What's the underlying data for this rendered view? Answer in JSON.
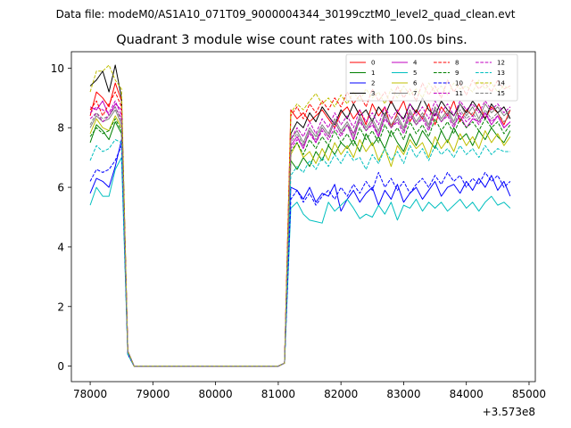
{
  "chart_data": {
    "type": "line",
    "suptitle": "Data file: modeM0/AS1A10_071T09_9000004344_30199cztM0_level2_quad_clean.evt",
    "title": "Quadrant 3 module wise count rates with 100.0s bins.",
    "xlabel": "",
    "ylabel": "",
    "x_offset_label": "+3.573e8",
    "xlim": [
      77700,
      85100
    ],
    "ylim": [
      -0.52,
      10.55
    ],
    "x_ticks": [
      78000,
      79000,
      80000,
      81000,
      82000,
      83000,
      84000,
      85000
    ],
    "x_tick_labels": [
      "78000",
      "79000",
      "80000",
      "81000",
      "82000",
      "83000",
      "84000",
      "85000"
    ],
    "y_ticks": [
      0,
      2,
      4,
      6,
      8,
      10
    ],
    "y_tick_labels": [
      "0",
      "2",
      "4",
      "6",
      "8",
      "10"
    ],
    "legend_position": "upper-right",
    "legend_columns": 4,
    "x": [
      78000,
      78100,
      78200,
      78300,
      78400,
      78500,
      78600,
      78700,
      78800,
      78900,
      79000,
      79100,
      79200,
      79300,
      79400,
      79500,
      79600,
      79700,
      79800,
      79900,
      80000,
      80100,
      80200,
      80300,
      80400,
      80500,
      80600,
      80700,
      80800,
      80900,
      81000,
      81100,
      81200,
      81300,
      81400,
      81500,
      81600,
      81700,
      81800,
      81900,
      82000,
      82100,
      82200,
      82300,
      82400,
      82500,
      82600,
      82700,
      82800,
      82900,
      83000,
      83100,
      83200,
      83300,
      83400,
      83500,
      83600,
      83700,
      83800,
      83900,
      84000,
      84100,
      84200,
      84300,
      84400,
      84500,
      84600,
      84700
    ],
    "series": [
      {
        "name": "0",
        "color": "#ff0000",
        "dash": "solid",
        "values": [
          8.4,
          9.2,
          9.0,
          8.7,
          9.5,
          8.9,
          0.5,
          0,
          0,
          0,
          0,
          0,
          0,
          0,
          0,
          0,
          0,
          0,
          0,
          0,
          0,
          0,
          0,
          0,
          0,
          0,
          0,
          0,
          0,
          0,
          0,
          0.1,
          8.6,
          8.3,
          8.5,
          8.2,
          8.4,
          8.6,
          8.3,
          8.0,
          8.5,
          8.7,
          8.3,
          8.6,
          8.1,
          8.8,
          8.4,
          8.7,
          8.0,
          8.5,
          8.9,
          8.2,
          8.6,
          8.3,
          8.8,
          8.1,
          8.7,
          8.4,
          8.9,
          8.2,
          8.6,
          8.4,
          8.8,
          8.3,
          8.7,
          8.5,
          8.1,
          8.6
        ]
      },
      {
        "name": "1",
        "color": "#008000",
        "dash": "solid",
        "values": [
          7.5,
          8.1,
          7.9,
          7.6,
          8.2,
          7.8,
          0.5,
          0,
          0,
          0,
          0,
          0,
          0,
          0,
          0,
          0,
          0,
          0,
          0,
          0,
          0,
          0,
          0,
          0,
          0,
          0,
          0,
          0,
          0,
          0,
          0,
          0.1,
          6.9,
          6.6,
          7.0,
          6.7,
          7.2,
          6.9,
          7.4,
          7.1,
          7.5,
          7.3,
          7.6,
          7.2,
          7.8,
          7.4,
          7.7,
          7.3,
          7.9,
          7.5,
          7.2,
          7.8,
          7.4,
          7.9,
          7.6,
          7.3,
          7.9,
          7.5,
          8.0,
          7.6,
          7.8,
          7.4,
          7.9,
          7.6,
          8.0,
          7.7,
          7.5,
          7.9
        ]
      },
      {
        "name": "2",
        "color": "#0000ff",
        "dash": "solid",
        "values": [
          5.8,
          6.3,
          6.2,
          6.0,
          6.7,
          7.6,
          0.4,
          0,
          0,
          0,
          0,
          0,
          0,
          0,
          0,
          0,
          0,
          0,
          0,
          0,
          0,
          0,
          0,
          0,
          0,
          0,
          0,
          0,
          0,
          0,
          0,
          0.1,
          6.0,
          5.9,
          5.6,
          6.0,
          5.5,
          5.8,
          5.7,
          6.1,
          5.2,
          5.6,
          5.9,
          5.5,
          5.8,
          6.0,
          5.4,
          5.9,
          5.6,
          6.1,
          5.5,
          5.8,
          6.0,
          5.6,
          5.9,
          6.2,
          5.7,
          6.0,
          6.1,
          5.8,
          6.2,
          5.9,
          6.3,
          6.0,
          6.4,
          5.9,
          6.2,
          5.7
        ]
      },
      {
        "name": "3",
        "color": "#000000",
        "dash": "solid",
        "values": [
          9.4,
          9.6,
          9.9,
          9.2,
          10.1,
          9.0,
          0.5,
          0,
          0,
          0,
          0,
          0,
          0,
          0,
          0,
          0,
          0,
          0,
          0,
          0,
          0,
          0,
          0,
          0,
          0,
          0,
          0,
          0,
          0,
          0,
          0,
          0.1,
          7.8,
          8.2,
          8.0,
          8.5,
          8.2,
          8.7,
          8.4,
          8.1,
          8.6,
          8.3,
          8.8,
          8.4,
          8.6,
          8.2,
          8.7,
          8.4,
          8.9,
          8.5,
          8.3,
          8.8,
          8.5,
          9.0,
          8.6,
          8.4,
          8.9,
          8.6,
          8.4,
          8.8,
          8.5,
          8.9,
          8.6,
          8.3,
          8.8,
          8.5,
          8.7,
          8.3
        ]
      },
      {
        "name": "4",
        "color": "#c000c0",
        "dash": "solid",
        "values": [
          8.7,
          8.6,
          8.9,
          8.4,
          8.8,
          8.6,
          0.5,
          0,
          0,
          0,
          0,
          0,
          0,
          0,
          0,
          0,
          0,
          0,
          0,
          0,
          0,
          0,
          0,
          0,
          0,
          0,
          0,
          0,
          0,
          0,
          0,
          0.1,
          7.4,
          7.7,
          7.3,
          7.9,
          7.5,
          8.0,
          7.7,
          8.2,
          7.8,
          8.1,
          7.6,
          8.3,
          7.9,
          8.2,
          7.7,
          8.4,
          8.0,
          8.3,
          7.9,
          8.5,
          8.1,
          8.4,
          8.0,
          8.6,
          8.2,
          8.5,
          8.1,
          8.4,
          8.0,
          8.3,
          8.2,
          8.5,
          8.1,
          8.4,
          8.0,
          8.2
        ]
      },
      {
        "name": "5",
        "color": "#00bfbf",
        "dash": "solid",
        "values": [
          5.4,
          6.0,
          5.7,
          5.7,
          6.6,
          7.0,
          0.4,
          0,
          0,
          0,
          0,
          0,
          0,
          0,
          0,
          0,
          0,
          0,
          0,
          0,
          0,
          0,
          0,
          0,
          0,
          0,
          0,
          0,
          0,
          0,
          0,
          0.1,
          5.3,
          5.5,
          5.1,
          4.9,
          4.85,
          4.8,
          5.5,
          5.2,
          5.4,
          5.6,
          5.3,
          4.95,
          5.1,
          5.0,
          5.4,
          5.1,
          5.5,
          4.9,
          5.4,
          5.3,
          5.6,
          5.2,
          5.5,
          5.3,
          5.5,
          5.2,
          5.4,
          5.6,
          5.3,
          5.5,
          5.2,
          5.5,
          5.7,
          5.4,
          5.5,
          5.3
        ]
      },
      {
        "name": "6",
        "color": "#bfbf00",
        "dash": "solid",
        "values": [
          7.8,
          8.3,
          8.0,
          7.9,
          8.4,
          8.0,
          0.5,
          0,
          0,
          0,
          0,
          0,
          0,
          0,
          0,
          0,
          0,
          0,
          0,
          0,
          0,
          0,
          0,
          0,
          0,
          0,
          0,
          0,
          0,
          0,
          0,
          0.1,
          7.1,
          7.5,
          7.0,
          7.2,
          6.8,
          7.3,
          6.9,
          7.5,
          7.1,
          7.4,
          7.0,
          7.6,
          7.2,
          7.5,
          6.9,
          7.3,
          6.7,
          7.4,
          7.1,
          7.6,
          7.3,
          7.5,
          7.0,
          7.7,
          7.3,
          7.6,
          7.2,
          7.8,
          7.4,
          7.7,
          7.3,
          7.9,
          7.5,
          7.8,
          7.4,
          7.7
        ]
      },
      {
        "name": "7",
        "color": "#808080",
        "dash": "solid",
        "values": [
          8.0,
          8.4,
          8.2,
          8.3,
          8.6,
          8.1,
          0.5,
          0,
          0,
          0,
          0,
          0,
          0,
          0,
          0,
          0,
          0,
          0,
          0,
          0,
          0,
          0,
          0,
          0,
          0,
          0,
          0,
          0,
          0,
          0,
          0,
          0.1,
          7.6,
          7.9,
          7.5,
          8.0,
          7.7,
          8.1,
          7.8,
          8.3,
          7.9,
          8.2,
          7.8,
          8.4,
          8.0,
          8.3,
          7.9,
          8.5,
          8.1,
          8.4,
          8.0,
          8.6,
          8.2,
          8.5,
          8.1,
          8.7,
          8.3,
          8.6,
          8.2,
          8.8,
          8.4,
          8.7,
          8.3,
          8.8,
          8.5,
          8.7,
          8.4,
          8.6
        ]
      },
      {
        "name": "8",
        "color": "#ff0000",
        "dash": "dashed",
        "values": [
          8.6,
          8.9,
          8.4,
          8.8,
          9.2,
          8.7,
          0.5,
          0,
          0,
          0,
          0,
          0,
          0,
          0,
          0,
          0,
          0,
          0,
          0,
          0,
          0,
          0,
          0,
          0,
          0,
          0,
          0,
          0,
          0,
          0,
          0,
          0.1,
          8.4,
          8.7,
          8.3,
          8.8,
          8.5,
          8.9,
          8.6,
          9.0,
          8.7,
          9.2,
          8.8,
          9.1,
          8.7,
          9.3,
          8.9,
          9.2,
          8.8,
          9.4,
          9.0,
          9.3,
          8.9,
          9.5,
          9.1,
          9.4,
          9.0,
          9.6,
          9.2,
          9.5,
          9.1,
          9.6,
          9.3,
          9.5,
          9.2,
          9.6,
          9.3,
          9.4
        ]
      },
      {
        "name": "9",
        "color": "#008000",
        "dash": "dashed",
        "values": [
          7.7,
          8.0,
          7.8,
          7.9,
          8.3,
          7.9,
          0.5,
          0,
          0,
          0,
          0,
          0,
          0,
          0,
          0,
          0,
          0,
          0,
          0,
          0,
          0,
          0,
          0,
          0,
          0,
          0,
          0,
          0,
          0,
          0,
          0,
          0.1,
          7.2,
          7.5,
          7.1,
          7.6,
          7.3,
          7.7,
          7.4,
          7.9,
          7.5,
          7.8,
          7.4,
          8.0,
          7.6,
          7.9,
          7.5,
          8.1,
          7.7,
          8.0,
          7.6,
          8.2,
          7.8,
          8.1,
          7.7,
          8.3,
          7.9,
          8.2,
          7.8,
          8.3,
          8.0,
          8.2,
          7.9,
          8.3,
          8.0,
          8.2,
          7.8,
          8.1
        ]
      },
      {
        "name": "10",
        "color": "#0000ff",
        "dash": "dashed",
        "values": [
          6.2,
          6.6,
          6.5,
          6.6,
          6.9,
          7.4,
          0.4,
          0,
          0,
          0,
          0,
          0,
          0,
          0,
          0,
          0,
          0,
          0,
          0,
          0,
          0,
          0,
          0,
          0,
          0,
          0,
          0,
          0,
          0,
          0,
          0,
          0.1,
          5.6,
          5.9,
          5.5,
          5.8,
          5.4,
          5.7,
          5.9,
          5.6,
          6.0,
          5.7,
          6.1,
          5.8,
          6.2,
          5.9,
          6.5,
          6.0,
          6.3,
          5.9,
          6.2,
          5.8,
          6.1,
          6.3,
          6.0,
          6.4,
          6.1,
          6.5,
          6.2,
          6.4,
          6.0,
          6.3,
          6.1,
          6.5,
          6.2,
          6.4,
          6.0,
          6.2
        ]
      },
      {
        "name": "11",
        "color": "#c000c0",
        "dash": "dashed",
        "values": [
          8.5,
          8.7,
          8.6,
          8.5,
          8.9,
          8.4,
          0.5,
          0,
          0,
          0,
          0,
          0,
          0,
          0,
          0,
          0,
          0,
          0,
          0,
          0,
          0,
          0,
          0,
          0,
          0,
          0,
          0,
          0,
          0,
          0,
          0,
          0.1,
          7.6,
          8.0,
          7.7,
          8.2,
          7.8,
          8.3,
          8.0,
          8.5,
          8.1,
          8.4,
          8.0,
          8.6,
          8.2,
          8.5,
          8.1,
          8.7,
          8.3,
          8.6,
          8.2,
          8.8,
          8.4,
          8.7,
          8.3,
          8.9,
          8.5,
          8.8,
          8.4,
          8.9,
          8.6,
          8.8,
          8.5,
          8.9,
          8.6,
          8.8,
          8.5,
          8.7
        ]
      },
      {
        "name": "12",
        "color": "#c000c0",
        "dash": "dashed",
        "values": [
          8.3,
          8.5,
          8.2,
          8.4,
          8.7,
          8.3,
          0.5,
          0,
          0,
          0,
          0,
          0,
          0,
          0,
          0,
          0,
          0,
          0,
          0,
          0,
          0,
          0,
          0,
          0,
          0,
          0,
          0,
          0,
          0,
          0,
          0,
          0.1,
          7.3,
          7.6,
          7.4,
          7.8,
          7.5,
          7.9,
          7.6,
          8.0,
          7.7,
          8.1,
          7.8,
          8.2,
          7.9,
          8.1,
          7.7,
          8.3,
          8.0,
          8.2,
          7.8,
          8.4,
          8.1,
          8.3,
          7.9,
          8.5,
          8.2,
          8.4,
          8.0,
          8.5,
          8.2,
          8.4,
          8.1,
          8.5,
          8.2,
          8.4,
          8.0,
          8.2
        ]
      },
      {
        "name": "13",
        "color": "#00bfbf",
        "dash": "dashed",
        "values": [
          6.9,
          7.4,
          7.2,
          7.3,
          7.6,
          7.5,
          0.4,
          0,
          0,
          0,
          0,
          0,
          0,
          0,
          0,
          0,
          0,
          0,
          0,
          0,
          0,
          0,
          0,
          0,
          0,
          0,
          0,
          0,
          0,
          0,
          0,
          0.1,
          6.4,
          6.7,
          6.5,
          6.9,
          6.6,
          7.0,
          6.7,
          7.1,
          6.8,
          7.2,
          6.9,
          7.0,
          6.6,
          7.1,
          6.8,
          7.3,
          6.9,
          7.2,
          6.8,
          7.4,
          7.0,
          7.3,
          6.9,
          7.4,
          7.1,
          7.3,
          7.0,
          7.4,
          7.1,
          7.3,
          7.0,
          7.4,
          7.1,
          7.3,
          7.2,
          7.2
        ]
      },
      {
        "name": "14",
        "color": "#bfbf00",
        "dash": "dashed",
        "values": [
          9.2,
          9.9,
          9.9,
          10.1,
          9.6,
          9.3,
          0.5,
          0,
          0,
          0,
          0,
          0,
          0,
          0,
          0,
          0,
          0,
          0,
          0,
          0,
          0,
          0,
          0,
          0,
          0,
          0,
          0,
          0,
          0,
          0,
          0,
          0.1,
          8.5,
          8.8,
          8.6,
          8.9,
          9.15,
          8.8,
          9.0,
          8.7,
          9.1,
          8.8,
          9.2,
          8.9,
          9.3,
          9.0,
          9.2,
          8.8,
          9.3,
          9.0,
          9.4,
          9.1,
          9.3,
          9.0,
          9.5,
          9.2,
          9.4,
          9.1,
          9.5,
          9.3,
          9.4,
          9.2,
          9.6,
          9.3,
          9.5,
          9.2,
          9.4,
          9.3
        ]
      },
      {
        "name": "15",
        "color": "#808080",
        "dash": "dashed",
        "values": [
          8.1,
          8.5,
          8.3,
          8.4,
          8.7,
          8.2,
          0.5,
          0,
          0,
          0,
          0,
          0,
          0,
          0,
          0,
          0,
          0,
          0,
          0,
          0,
          0,
          0,
          0,
          0,
          0,
          0,
          0,
          0,
          0,
          0,
          0,
          0.1,
          7.5,
          7.8,
          7.4,
          7.9,
          7.6,
          8.0,
          7.7,
          8.2,
          7.8,
          8.1,
          7.7,
          8.3,
          7.9,
          8.2,
          7.8,
          8.4,
          8.0,
          8.3,
          7.9,
          8.5,
          8.1,
          8.4,
          8.0,
          8.6,
          8.2,
          8.5,
          8.1,
          8.6,
          8.3,
          8.5,
          8.2,
          8.6,
          8.3,
          8.5,
          8.2,
          8.4
        ]
      }
    ]
  }
}
